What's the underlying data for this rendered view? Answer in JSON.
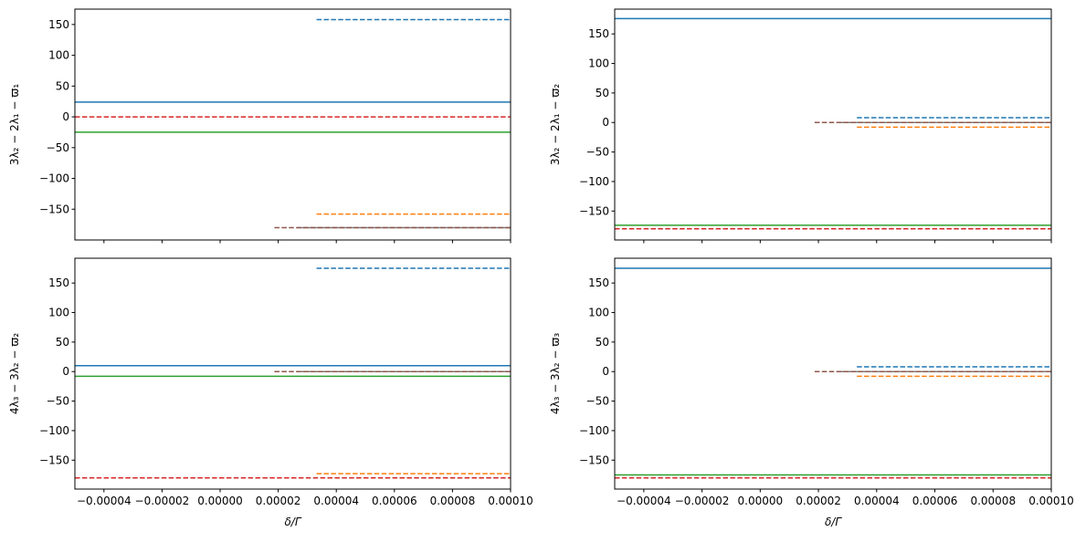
{
  "chart_data": [
    {
      "type": "line",
      "panel": "top-left",
      "ylabel": "3λ₂ − 2λ₁ − ϖ₁",
      "xlabel": "",
      "xlim": [
        -5e-05,
        0.0001
      ],
      "ylim": [
        -200,
        175
      ],
      "x_ticks": [
        "−0.00004",
        "−0.00002",
        "0.00000",
        "0.00002",
        "0.00004",
        "0.00006",
        "0.00008",
        "0.00010"
      ],
      "x_tick_labels_shown": false,
      "y_ticks": [
        -150,
        -100,
        -50,
        0,
        50,
        100,
        150
      ],
      "grid": false,
      "series": [
        {
          "color": "#1f77b4",
          "style": "solid",
          "y": 24,
          "x_start": -5e-05,
          "x_end": 0.0001
        },
        {
          "color": "#2ca02c",
          "style": "solid",
          "y": -25,
          "x_start": -5e-05,
          "x_end": 0.0001
        },
        {
          "color": "#d62728",
          "style": "dashed",
          "y": 0,
          "x_start": -5e-05,
          "x_end": 0.0001
        },
        {
          "color": "#1f77b4",
          "style": "dashed",
          "y": 158,
          "x_start": 3.32e-05,
          "x_end": 0.0001
        },
        {
          "color": "#ff7f0e",
          "style": "dashed",
          "y": -158,
          "x_start": 3.32e-05,
          "x_end": 0.0001
        },
        {
          "color": "#7f7f7f",
          "style": "solid",
          "y": -180,
          "x_start": 2.66e-05,
          "x_end": 0.0001
        },
        {
          "color": "#8c564b",
          "style": "dashed",
          "y": -180,
          "x_start": 1.87e-05,
          "x_end": 0.0001
        }
      ]
    },
    {
      "type": "line",
      "panel": "top-right",
      "ylabel": "3λ₂ − 2λ₁ − ϖ₂",
      "xlabel": "",
      "xlim": [
        -5e-05,
        0.0001
      ],
      "ylim": [
        -199,
        192
      ],
      "x_ticks": [
        "−0.00004",
        "−0.00002",
        "0.00000",
        "0.00002",
        "0.00004",
        "0.00006",
        "0.00008",
        "0.00010"
      ],
      "x_tick_labels_shown": false,
      "y_ticks": [
        -150,
        -100,
        -50,
        0,
        50,
        100,
        150
      ],
      "grid": false,
      "series": [
        {
          "color": "#1f77b4",
          "style": "solid",
          "y": 176,
          "x_start": -5e-05,
          "x_end": 0.0001
        },
        {
          "color": "#2ca02c",
          "style": "solid",
          "y": -174,
          "x_start": -5e-05,
          "x_end": 0.0001
        },
        {
          "color": "#d62728",
          "style": "dashed",
          "y": -180,
          "x_start": -5e-05,
          "x_end": 0.0001
        },
        {
          "color": "#1f77b4",
          "style": "dashed",
          "y": 8,
          "x_start": 3.32e-05,
          "x_end": 0.0001
        },
        {
          "color": "#ff7f0e",
          "style": "dashed",
          "y": -8,
          "x_start": 3.32e-05,
          "x_end": 0.0001
        },
        {
          "color": "#7f7f7f",
          "style": "solid",
          "y": 0,
          "x_start": 2.66e-05,
          "x_end": 0.0001
        },
        {
          "color": "#8c564b",
          "style": "dashed",
          "y": 0,
          "x_start": 1.87e-05,
          "x_end": 0.0001
        }
      ]
    },
    {
      "type": "line",
      "panel": "bottom-left",
      "ylabel": "4λ₃ − 3λ₂ − ϖ₂",
      "xlabel": "δ/Γ",
      "xlim": [
        -5e-05,
        0.0001
      ],
      "ylim": [
        -199,
        192
      ],
      "x_ticks": [
        "−0.00004",
        "−0.00002",
        "0.00000",
        "0.00002",
        "0.00004",
        "0.00006",
        "0.00008",
        "0.00010"
      ],
      "x_tick_labels_shown": true,
      "y_ticks": [
        -150,
        -100,
        -50,
        0,
        50,
        100,
        150
      ],
      "grid": false,
      "series": [
        {
          "color": "#1f77b4",
          "style": "solid",
          "y": 10,
          "x_start": -5e-05,
          "x_end": 0.0001
        },
        {
          "color": "#2ca02c",
          "style": "solid",
          "y": -8,
          "x_start": -5e-05,
          "x_end": 0.0001
        },
        {
          "color": "#d62728",
          "style": "dashed",
          "y": -180,
          "x_start": -5e-05,
          "x_end": 0.0001
        },
        {
          "color": "#1f77b4",
          "style": "dashed",
          "y": 175,
          "x_start": 3.32e-05,
          "x_end": 0.0001
        },
        {
          "color": "#ff7f0e",
          "style": "dashed",
          "y": -173,
          "x_start": 3.32e-05,
          "x_end": 0.0001
        },
        {
          "color": "#7f7f7f",
          "style": "solid",
          "y": 0,
          "x_start": 2.66e-05,
          "x_end": 0.0001
        },
        {
          "color": "#8c564b",
          "style": "dashed",
          "y": 0,
          "x_start": 1.87e-05,
          "x_end": 0.0001
        }
      ]
    },
    {
      "type": "line",
      "panel": "bottom-right",
      "ylabel": "4λ₃ − 3λ₂ − ϖ₃",
      "xlabel": "δ/Γ",
      "xlim": [
        -5e-05,
        0.0001
      ],
      "ylim": [
        -199,
        192
      ],
      "x_ticks": [
        "−0.00004",
        "−0.00002",
        "0.00000",
        "0.00002",
        "0.00004",
        "0.00006",
        "0.00008",
        "0.00010"
      ],
      "x_tick_labels_shown": true,
      "y_ticks": [
        -150,
        -100,
        -50,
        0,
        50,
        100,
        150
      ],
      "grid": false,
      "series": [
        {
          "color": "#1f77b4",
          "style": "solid",
          "y": 175,
          "x_start": -5e-05,
          "x_end": 0.0001
        },
        {
          "color": "#2ca02c",
          "style": "solid",
          "y": -175,
          "x_start": -5e-05,
          "x_end": 0.0001
        },
        {
          "color": "#d62728",
          "style": "dashed",
          "y": -180,
          "x_start": -5e-05,
          "x_end": 0.0001
        },
        {
          "color": "#1f77b4",
          "style": "dashed",
          "y": 8,
          "x_start": 3.32e-05,
          "x_end": 0.0001
        },
        {
          "color": "#ff7f0e",
          "style": "dashed",
          "y": -8,
          "x_start": 3.32e-05,
          "x_end": 0.0001
        },
        {
          "color": "#7f7f7f",
          "style": "solid",
          "y": 0,
          "x_start": 2.66e-05,
          "x_end": 0.0001
        },
        {
          "color": "#8c564b",
          "style": "dashed",
          "y": 0,
          "x_start": 1.87e-05,
          "x_end": 0.0001
        }
      ]
    }
  ]
}
